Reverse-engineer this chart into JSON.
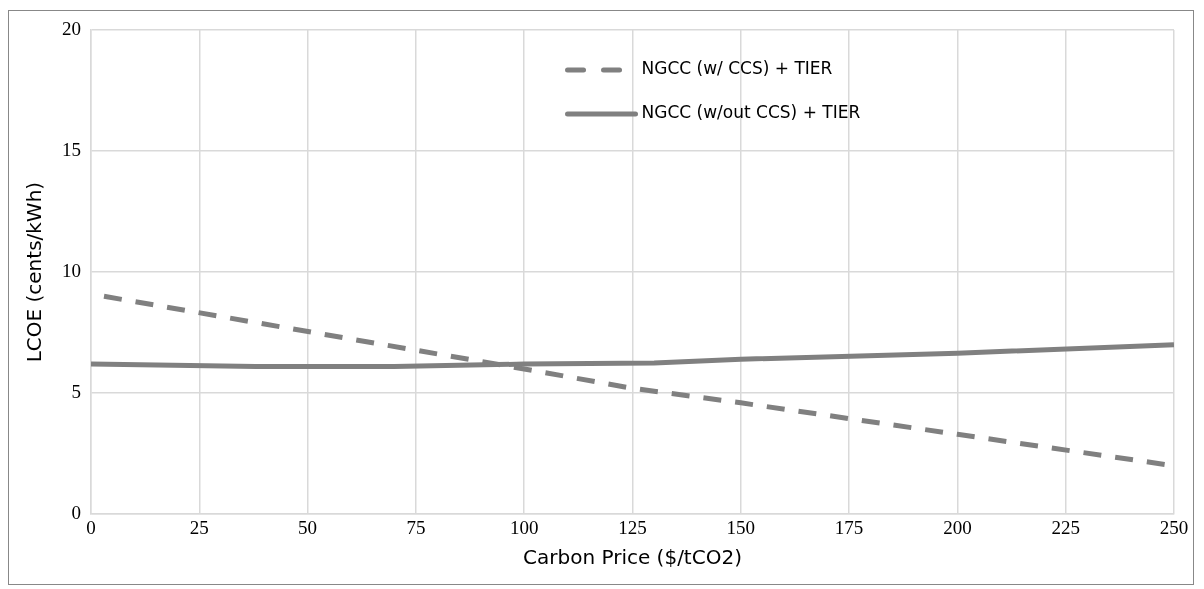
{
  "chart_data": {
    "type": "line",
    "xlabel": "Carbon Price ($/tCO2)",
    "ylabel": "LCOE (cents/kWh)",
    "xlim": [
      0,
      250
    ],
    "xticks": [
      0,
      25,
      50,
      75,
      100,
      125,
      150,
      175,
      200,
      225,
      250
    ],
    "ylim": [
      0,
      20
    ],
    "yticks": [
      0,
      5,
      10,
      15,
      20
    ],
    "grid": true,
    "legend": "top right",
    "marker": "none",
    "series": [
      {
        "name": "NGCC (w/ CCS) + TIER",
        "color": "#808080",
        "line_style": "dashed",
        "x": [
          3,
          100,
          125,
          150,
          200,
          250
        ],
        "values": [
          9.0,
          6.0,
          5.2,
          4.6,
          3.3,
          2.0
        ]
      },
      {
        "name": "NGCC (w/out CCS) + TIER",
        "color": "#808080",
        "line_style": "solid",
        "x": [
          0,
          40,
          70,
          100,
          130,
          150,
          200,
          250
        ],
        "values": [
          6.2,
          6.1,
          6.1,
          6.2,
          6.25,
          6.4,
          6.65,
          7.0
        ]
      }
    ]
  }
}
